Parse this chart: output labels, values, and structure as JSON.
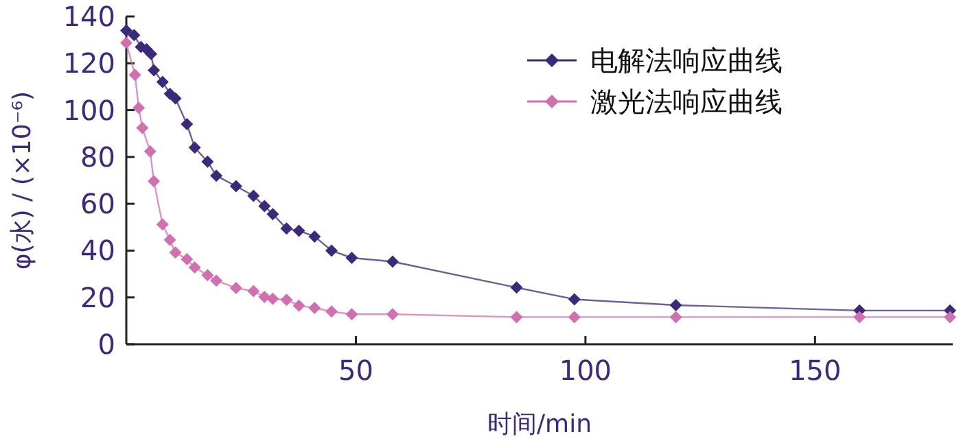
{
  "chart_data": {
    "type": "line",
    "xlabel": "时间/min",
    "ylabel": "φ(水) / (×10⁻⁶)",
    "xlim": [
      0,
      180
    ],
    "xticks": [
      50,
      100,
      150
    ],
    "ylim": [
      0,
      140
    ],
    "yticks": [
      0,
      20,
      40,
      60,
      80,
      100,
      120,
      140
    ],
    "grid": false,
    "legend": "top right",
    "marker": "diamond",
    "line_style": "solid",
    "series": [
      {
        "name": "电解法响应曲线",
        "color": "#3b2a7a",
        "x": [
          0,
          1.7,
          3.2,
          4.4,
          5.4,
          6,
          7.9,
          9.5,
          10.7,
          13.2,
          14.9,
          17.7,
          19.6,
          23.9,
          27.7,
          30.1,
          31.9,
          34.9,
          37.6,
          41,
          44.7,
          49.1,
          58,
          85,
          97.6,
          119.7,
          159.7,
          179.4
        ],
        "values": [
          134,
          132,
          127,
          126,
          124,
          117,
          112,
          107,
          105,
          94,
          84,
          78,
          72,
          67.5,
          63.4,
          59,
          55.6,
          49.4,
          48.5,
          46,
          40,
          36.9,
          35.3,
          24.2,
          19.2,
          16.7,
          14.4,
          14.4
        ]
      },
      {
        "name": "激光法响应曲线",
        "color": "#d070b0",
        "x": [
          0,
          1.9,
          2.7,
          3.5,
          5.2,
          6,
          7.9,
          9.5,
          10.7,
          13.2,
          14.9,
          17.7,
          19.6,
          23.9,
          27.7,
          30.1,
          31.9,
          34.9,
          37.6,
          41,
          44.7,
          49.1,
          58,
          85,
          97.6,
          119.7,
          159.7,
          179.4
        ],
        "values": [
          128.7,
          115,
          101,
          92.4,
          82.4,
          69.6,
          51.2,
          44.6,
          39.2,
          36.3,
          32.8,
          29.5,
          27.2,
          24,
          22.7,
          20.2,
          19.4,
          19,
          16.5,
          15.5,
          14,
          12.8,
          12.8,
          11.6,
          11.6,
          11.6,
          11.6,
          11.6
        ]
      }
    ]
  }
}
